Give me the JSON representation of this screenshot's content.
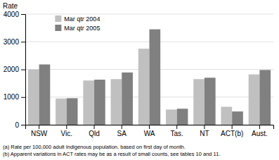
{
  "chart_data": {
    "type": "bar",
    "ylabel": "Rate",
    "categories": [
      "NSW",
      "Vic.",
      "Qld",
      "SA",
      "WA",
      "Tas.",
      "NT",
      "ACT(b)",
      "Aust."
    ],
    "series": [
      {
        "name": "Mar qtr 2004",
        "color": "#c0c0c0",
        "values": [
          2000,
          950,
          1600,
          1650,
          2750,
          550,
          1650,
          650,
          1820
        ]
      },
      {
        "name": "Mar qtr 2005",
        "color": "#808080",
        "values": [
          2180,
          960,
          1630,
          1890,
          3450,
          580,
          1700,
          480,
          1980
        ]
      }
    ],
    "ylim": [
      0,
      4000
    ],
    "yticks": [
      0,
      1000,
      2000,
      3000,
      4000
    ],
    "grid": true,
    "legend": "upper left",
    "annotations": [
      "(a) Rate per 100,000 adult Indigenous population, based on first day of month.",
      "(b) Apparent variations in ACT rates may be as a result of small counts, see tables 10 and  11."
    ]
  }
}
